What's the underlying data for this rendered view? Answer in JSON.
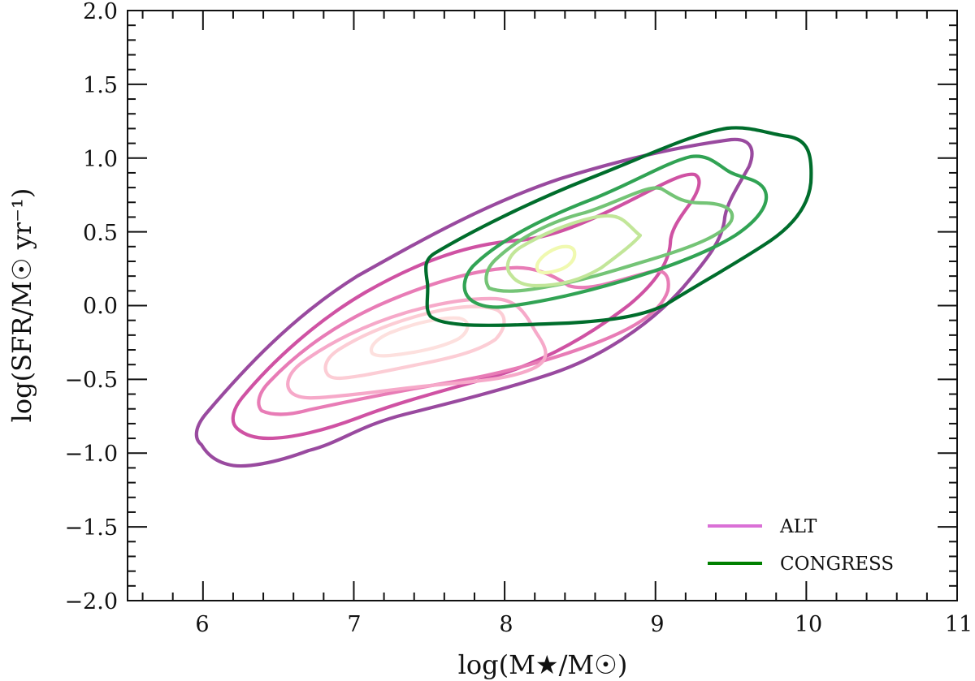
{
  "chart_data": {
    "type": "contour",
    "title": "",
    "xlabel": "log(M★/M☉)",
    "ylabel": "log(SFR/M☉ yr⁻¹)",
    "xlim": [
      5.5,
      11
    ],
    "ylim": [
      -2.0,
      2.0
    ],
    "xticks": [
      "6",
      "7",
      "8",
      "9",
      "10",
      "11"
    ],
    "yticks": [
      "−2.0",
      "−1.5",
      "−1.0",
      "−0.5",
      "0.0",
      "0.5",
      "1.0",
      "1.5",
      "2.0"
    ],
    "grid": false,
    "legend_position": "lower right",
    "legend": [
      {
        "label": "ALT",
        "color": "#da70d6"
      },
      {
        "label": "CONGRESS",
        "color": "#008000"
      }
    ],
    "series": [
      {
        "name": "ALT",
        "description": "KDE density contours, 6 levels, outermost dark purple to innermost pale pink",
        "levels": [
          {
            "color": "#994a9f",
            "approx_extent": {
              "x": [
                6.0,
                9.8
              ],
              "y": [
                -1.1,
                1.15
              ]
            }
          },
          {
            "color": "#cf52a3",
            "approx_extent": {
              "x": [
                6.2,
                9.3
              ],
              "y": [
                -0.95,
                0.75
              ]
            }
          },
          {
            "color": "#e87cb6",
            "approx_extent": {
              "x": [
                6.4,
                8.8
              ],
              "y": [
                -0.8,
                0.35
              ]
            }
          },
          {
            "color": "#f6a9c9",
            "approx_extent": {
              "x": [
                6.6,
                8.2
              ],
              "y": [
                -0.6,
                0.15
              ]
            }
          },
          {
            "color": "#fccdd5",
            "approx_extent": {
              "x": [
                6.9,
                7.9
              ],
              "y": [
                -0.45,
                0.0
              ]
            }
          },
          {
            "color": "#fde0de",
            "approx_extent": {
              "x": [
                7.2,
                7.7
              ],
              "y": [
                -0.3,
                -0.1
              ]
            }
          }
        ],
        "peak": {
          "x": 7.45,
          "y": -0.2
        }
      },
      {
        "name": "CONGRESS",
        "description": "KDE density contours, 5 levels, outermost dark green to innermost pale yellow-green",
        "levels": [
          {
            "color": "#006d2c",
            "approx_extent": {
              "x": [
                7.5,
                10.0
              ],
              "y": [
                -0.15,
                1.2
              ]
            }
          },
          {
            "color": "#31a354",
            "approx_extent": {
              "x": [
                7.7,
                9.7
              ],
              "y": [
                -0.05,
                0.9
              ]
            }
          },
          {
            "color": "#74c476",
            "approx_extent": {
              "x": [
                7.9,
                9.5
              ],
              "y": [
                0.1,
                0.7
              ]
            }
          },
          {
            "color": "#c2e699",
            "approx_extent": {
              "x": [
                8.0,
                8.9
              ],
              "y": [
                0.15,
                0.6
              ]
            }
          },
          {
            "color": "#f0f9b0",
            "approx_extent": {
              "x": [
                8.2,
                8.45
              ],
              "y": [
                0.25,
                0.4
              ]
            }
          }
        ],
        "peak": {
          "x": 8.35,
          "y": 0.32
        }
      }
    ]
  }
}
